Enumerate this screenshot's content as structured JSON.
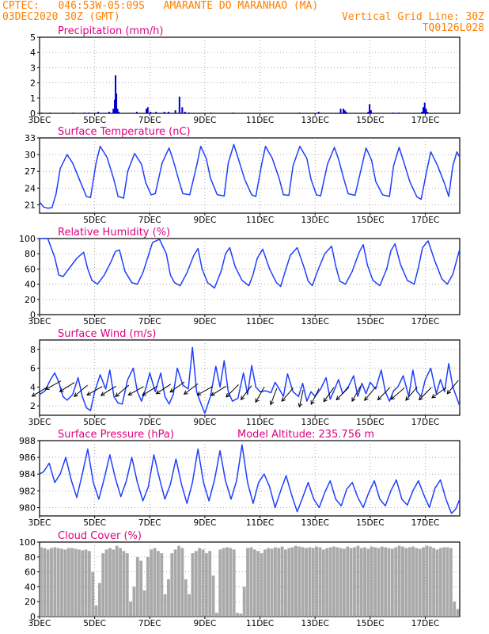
{
  "header": {
    "line1": "CPTEC:   046:53W-05:09S   AMARANTE DO MARANHAO (MA)",
    "line2": "03DEC2020 30Z (GMT)",
    "grid_note": "Vertical Grid Line: 30Z",
    "code": "TQ0126L028"
  },
  "colors": {
    "header": "#ff7f00",
    "title": "#e0007f",
    "line": "#1f3fff",
    "bar": "#0000cc",
    "cloud": "#a9a9a9",
    "arrow": "#000000"
  },
  "chart_data": [
    {
      "type": "bar",
      "title": "Precipitation (mm/h)",
      "ylim": [
        0,
        5
      ],
      "yticks": [
        0,
        1,
        2,
        3,
        4,
        5
      ],
      "xticks": [
        "3DEC",
        "5DEC",
        "7DEC",
        "9DEC",
        "11DEC",
        "13DEC",
        "15DEC",
        "17DEC"
      ],
      "xtick_days": [
        3,
        5,
        7,
        9,
        11,
        13,
        15,
        17
      ],
      "xlim_days": [
        3,
        18.25
      ],
      "x_days": [
        3.05,
        3.35,
        4.2,
        4.6,
        4.75,
        5.1,
        5.5,
        5.65,
        5.7,
        5.73,
        5.76,
        5.8,
        5.85,
        6.5,
        6.85,
        6.9,
        7.0,
        7.2,
        7.5,
        7.65,
        7.9,
        8.05,
        8.15,
        8.25,
        8.4,
        9.2,
        10.0,
        12.4,
        13.1,
        13.9,
        14.0,
        14.05,
        14.1,
        14.9,
        14.95,
        15.0,
        15.8,
        16.0,
        16.85,
        16.9,
        16.95,
        17.0,
        17.05
      ],
      "values": [
        0.05,
        0.05,
        0.05,
        0.05,
        0.05,
        0.1,
        0.1,
        0.3,
        0.9,
        2.5,
        1.3,
        0.3,
        0.1,
        0.1,
        0.3,
        0.4,
        0.1,
        0.1,
        0.1,
        0.1,
        0.2,
        1.1,
        0.4,
        0.1,
        0.05,
        0.05,
        0.05,
        0.05,
        0.1,
        0.3,
        0.3,
        0.2,
        0.1,
        0.1,
        0.6,
        0.2,
        0.05,
        0.05,
        0.1,
        0.4,
        0.7,
        0.3,
        0.1
      ]
    },
    {
      "type": "line",
      "title": "Surface Temperature (nC)",
      "ylim": [
        19.5,
        33
      ],
      "yticks": [
        21,
        24,
        27,
        30,
        33
      ],
      "xticks": [
        "5DEC",
        "7DEC",
        "9DEC",
        "11DEC",
        "13DEC",
        "15DEC",
        "17DEC"
      ],
      "xtick_days": [
        5,
        7,
        9,
        11,
        13,
        15,
        17
      ],
      "xlim_days": [
        3,
        18.25
      ],
      "x_days": [
        3,
        3.15,
        3.3,
        3.45,
        3.6,
        3.75,
        4.0,
        4.2,
        4.45,
        4.7,
        4.85,
        5.05,
        5.2,
        5.45,
        5.7,
        5.85,
        6.05,
        6.2,
        6.45,
        6.7,
        6.85,
        7.05,
        7.2,
        7.45,
        7.7,
        7.85,
        8.05,
        8.2,
        8.45,
        8.7,
        8.85,
        9.05,
        9.2,
        9.45,
        9.7,
        9.85,
        10.05,
        10.2,
        10.45,
        10.7,
        10.85,
        11.05,
        11.2,
        11.45,
        11.7,
        11.85,
        12.05,
        12.2,
        12.45,
        12.7,
        12.85,
        13.05,
        13.2,
        13.45,
        13.7,
        13.85,
        14.05,
        14.2,
        14.45,
        14.7,
        14.85,
        15.05,
        15.2,
        15.45,
        15.7,
        15.85,
        16.05,
        16.2,
        16.45,
        16.7,
        16.85,
        17.05,
        17.2,
        17.45,
        17.7,
        17.85,
        18.0,
        18.15,
        18.25
      ],
      "values": [
        21.5,
        20.6,
        20.4,
        20.5,
        23.0,
        27.5,
        30.0,
        28.5,
        25.5,
        22.5,
        22.3,
        28.5,
        31.5,
        29.5,
        25.5,
        22.5,
        22.2,
        27.0,
        30.2,
        28.3,
        25.0,
        22.8,
        23.0,
        28.5,
        31.2,
        29.0,
        25.5,
        23.0,
        22.8,
        28.0,
        31.5,
        29.3,
        25.8,
        22.8,
        22.6,
        28.5,
        31.8,
        29.5,
        25.5,
        22.8,
        22.5,
        28.0,
        31.5,
        29.3,
        25.7,
        22.8,
        22.7,
        28.0,
        31.5,
        29.3,
        25.6,
        22.8,
        22.6,
        28.3,
        31.3,
        29.2,
        25.5,
        23.0,
        22.7,
        28.0,
        31.2,
        29.0,
        25.2,
        22.8,
        22.5,
        28.0,
        31.3,
        29.0,
        25.0,
        22.4,
        22.0,
        27.0,
        30.5,
        28.0,
        24.8,
        22.5,
        28.0,
        30.5,
        29.5
      ]
    },
    {
      "type": "line",
      "title": "Relative Humidity (%)",
      "ylim": [
        0,
        100
      ],
      "yticks": [
        0,
        20,
        40,
        60,
        80,
        100
      ],
      "xticks": [
        "3DEC",
        "5DEC",
        "7DEC",
        "9DEC",
        "11DEC",
        "13DEC",
        "15DEC",
        "17DEC"
      ],
      "xtick_days": [
        3,
        5,
        7,
        9,
        11,
        13,
        15,
        17
      ],
      "xlim_days": [
        3,
        18.25
      ],
      "x_days": [
        3,
        3.3,
        3.55,
        3.7,
        3.85,
        4.1,
        4.35,
        4.6,
        4.75,
        4.9,
        5.1,
        5.35,
        5.6,
        5.75,
        5.9,
        6.1,
        6.35,
        6.55,
        6.75,
        6.9,
        7.1,
        7.35,
        7.6,
        7.75,
        7.9,
        8.1,
        8.35,
        8.6,
        8.75,
        8.9,
        9.1,
        9.35,
        9.6,
        9.75,
        9.9,
        10.1,
        10.35,
        10.6,
        10.75,
        10.9,
        11.1,
        11.35,
        11.6,
        11.75,
        11.9,
        12.1,
        12.35,
        12.6,
        12.75,
        12.9,
        13.1,
        13.35,
        13.6,
        13.75,
        13.9,
        14.1,
        14.35,
        14.6,
        14.75,
        14.9,
        15.1,
        15.35,
        15.6,
        15.75,
        15.9,
        16.1,
        16.35,
        16.6,
        16.75,
        16.9,
        17.1,
        17.35,
        17.6,
        17.8,
        18.0,
        18.25
      ],
      "values": [
        100,
        100,
        75,
        52,
        50,
        62,
        74,
        82,
        60,
        45,
        40,
        52,
        70,
        83,
        85,
        57,
        42,
        40,
        55,
        72,
        95,
        99,
        80,
        52,
        42,
        38,
        55,
        78,
        87,
        60,
        42,
        35,
        58,
        80,
        88,
        63,
        45,
        38,
        53,
        74,
        86,
        60,
        42,
        37,
        55,
        78,
        88,
        62,
        44,
        38,
        58,
        80,
        90,
        64,
        44,
        40,
        57,
        82,
        92,
        65,
        45,
        38,
        60,
        84,
        93,
        66,
        45,
        40,
        62,
        88,
        97,
        70,
        47,
        40,
        53,
        86
      ]
    },
    {
      "type": "line",
      "title": "Surface Wind (m/s)",
      "ylim": [
        1,
        9
      ],
      "yticks": [
        2,
        4,
        6,
        8
      ],
      "xticks": [
        "3DEC",
        "5DEC",
        "7DEC",
        "9DEC",
        "11DEC",
        "13DEC",
        "15DEC",
        "17DEC"
      ],
      "xtick_days": [
        3,
        5,
        7,
        9,
        11,
        13,
        15,
        17
      ],
      "xlim_days": [
        3,
        18.25
      ],
      "x_days": [
        3,
        3.2,
        3.4,
        3.55,
        3.7,
        3.85,
        4.0,
        4.2,
        4.4,
        4.55,
        4.7,
        4.85,
        5.0,
        5.2,
        5.4,
        5.55,
        5.7,
        5.85,
        6.0,
        6.2,
        6.4,
        6.55,
        6.7,
        6.85,
        7.0,
        7.2,
        7.4,
        7.55,
        7.7,
        7.85,
        8.0,
        8.2,
        8.4,
        8.55,
        8.7,
        8.85,
        9.0,
        9.2,
        9.4,
        9.55,
        9.7,
        9.85,
        10.0,
        10.2,
        10.4,
        10.55,
        10.7,
        10.85,
        11.0,
        11.2,
        11.4,
        11.55,
        11.7,
        11.85,
        12.0,
        12.2,
        12.4,
        12.55,
        12.7,
        12.85,
        13.0,
        13.2,
        13.4,
        13.55,
        13.7,
        13.85,
        14.0,
        14.2,
        14.4,
        14.55,
        14.7,
        14.85,
        15.0,
        15.2,
        15.4,
        15.55,
        15.7,
        15.85,
        16.0,
        16.2,
        16.4,
        16.55,
        16.7,
        16.85,
        17.0,
        17.2,
        17.4,
        17.55,
        17.7,
        17.85,
        18.0,
        18.25
      ],
      "values": [
        3.2,
        3.6,
        4.8,
        5.5,
        4.5,
        3.0,
        2.6,
        3.2,
        5.0,
        3.0,
        1.8,
        1.5,
        3.5,
        5.3,
        3.8,
        5.8,
        3.0,
        2.3,
        2.2,
        4.8,
        6.0,
        3.5,
        2.5,
        3.8,
        5.5,
        3.5,
        5.5,
        3.0,
        2.2,
        3.2,
        6.0,
        4.2,
        3.8,
        8.2,
        3.5,
        2.3,
        1.2,
        3.0,
        6.2,
        4.0,
        6.8,
        3.5,
        2.5,
        2.8,
        5.5,
        3.2,
        6.3,
        4.0,
        3.5,
        3.6,
        3.4,
        4.5,
        3.8,
        3.0,
        5.4,
        3.5,
        3.0,
        4.4,
        2.5,
        3.5,
        3.0,
        3.8,
        5.0,
        2.7,
        3.7,
        4.8,
        3.3,
        4.0,
        5.2,
        3.0,
        4.4,
        3.3,
        4.5,
        3.8,
        5.8,
        3.5,
        2.5,
        3.6,
        4.0,
        5.2,
        3.0,
        5.8,
        3.5,
        3.0,
        4.8,
        6.0,
        3.3,
        4.8,
        3.5,
        6.5,
        4.0,
        2.0
      ]
    },
    {
      "type": "line",
      "title": "Surface Pressure (hPa)",
      "annotation": "Model Altitude: 235.756  m",
      "ylim": [
        979,
        988
      ],
      "yticks": [
        980,
        982,
        984,
        986,
        988
      ],
      "xticks": [
        "3DEC",
        "5DEC",
        "7DEC",
        "9DEC",
        "11DEC",
        "13DEC",
        "15DEC",
        "17DEC"
      ],
      "xtick_days": [
        3,
        5,
        7,
        9,
        11,
        13,
        15,
        17
      ],
      "xlim_days": [
        3,
        18.25
      ],
      "x_days": [
        3,
        3.15,
        3.35,
        3.55,
        3.75,
        3.95,
        4.15,
        4.35,
        4.55,
        4.75,
        4.95,
        5.15,
        5.35,
        5.55,
        5.75,
        5.95,
        6.15,
        6.35,
        6.55,
        6.75,
        6.95,
        7.15,
        7.35,
        7.55,
        7.75,
        7.95,
        8.15,
        8.35,
        8.55,
        8.75,
        8.95,
        9.15,
        9.35,
        9.55,
        9.75,
        9.95,
        10.15,
        10.35,
        10.55,
        10.75,
        10.95,
        11.15,
        11.35,
        11.55,
        11.75,
        11.95,
        12.15,
        12.35,
        12.55,
        12.75,
        12.95,
        13.15,
        13.35,
        13.55,
        13.75,
        13.95,
        14.15,
        14.35,
        14.55,
        14.75,
        14.95,
        15.15,
        15.35,
        15.55,
        15.75,
        15.95,
        16.15,
        16.35,
        16.55,
        16.75,
        16.95,
        17.15,
        17.35,
        17.55,
        17.75,
        17.95,
        18.1,
        18.25
      ],
      "values": [
        984.0,
        984.3,
        985.3,
        983.0,
        984.0,
        986.0,
        983.3,
        981.2,
        984.0,
        987.0,
        983.0,
        981.0,
        983.5,
        986.3,
        983.5,
        981.3,
        983.2,
        986.0,
        983.0,
        980.8,
        982.5,
        986.3,
        983.5,
        981.0,
        982.8,
        985.8,
        982.8,
        980.5,
        983.0,
        987.0,
        983.0,
        980.8,
        983.3,
        986.8,
        983.2,
        981.0,
        983.2,
        987.5,
        983.0,
        980.5,
        983.0,
        984.0,
        982.5,
        980.0,
        982.0,
        983.8,
        981.5,
        979.5,
        981.2,
        983.0,
        981.0,
        980.0,
        981.8,
        983.2,
        981.0,
        980.2,
        982.2,
        983.0,
        981.2,
        980.0,
        981.8,
        983.2,
        981.0,
        980.2,
        982.0,
        983.3,
        981.0,
        980.3,
        982.0,
        983.2,
        981.5,
        980.0,
        982.3,
        983.3,
        981.0,
        979.3,
        979.8,
        981.0
      ]
    },
    {
      "type": "bar",
      "title": "Cloud Cover (%)",
      "ylim": [
        0,
        100
      ],
      "yticks": [
        0,
        20,
        40,
        60,
        80,
        100
      ],
      "xticks": [
        "3DEC",
        "5DEC",
        "7DEC",
        "9DEC",
        "11DEC",
        "13DEC",
        "15DEC",
        "17DEC"
      ],
      "xtick_days": [
        3,
        5,
        7,
        9,
        11,
        13,
        15,
        17
      ],
      "xlim_days": [
        3,
        18.25
      ],
      "x_days": [
        3.0,
        3.125,
        3.25,
        3.375,
        3.5,
        3.625,
        3.75,
        3.875,
        4.0,
        4.125,
        4.25,
        4.375,
        4.5,
        4.625,
        4.75,
        4.875,
        5.0,
        5.125,
        5.25,
        5.375,
        5.5,
        5.625,
        5.75,
        5.875,
        6.0,
        6.125,
        6.25,
        6.375,
        6.5,
        6.625,
        6.75,
        6.875,
        7.0,
        7.125,
        7.25,
        7.375,
        7.5,
        7.625,
        7.75,
        7.875,
        8.0,
        8.125,
        8.25,
        8.375,
        8.5,
        8.625,
        8.75,
        8.875,
        9.0,
        9.125,
        9.25,
        9.375,
        9.5,
        9.625,
        9.75,
        9.875,
        10.0,
        10.125,
        10.25,
        10.375,
        10.5,
        10.625,
        10.75,
        10.875,
        11.0,
        11.125,
        11.25,
        11.375,
        11.5,
        11.625,
        11.75,
        11.875,
        12.0,
        12.125,
        12.25,
        12.375,
        12.5,
        12.625,
        12.75,
        12.875,
        13.0,
        13.125,
        13.25,
        13.375,
        13.5,
        13.625,
        13.75,
        13.875,
        14.0,
        14.125,
        14.25,
        14.375,
        14.5,
        14.625,
        14.75,
        14.875,
        15.0,
        15.125,
        15.25,
        15.375,
        15.5,
        15.625,
        15.75,
        15.875,
        16.0,
        16.125,
        16.25,
        16.375,
        16.5,
        16.625,
        16.75,
        16.875,
        17.0,
        17.125,
        17.25,
        17.375,
        17.5,
        17.625,
        17.75,
        17.875,
        18.0,
        18.125
      ],
      "values": [
        93,
        92,
        90,
        92,
        93,
        92,
        91,
        90,
        92,
        92,
        91,
        90,
        89,
        90,
        88,
        60,
        15,
        45,
        85,
        90,
        92,
        90,
        95,
        92,
        88,
        85,
        20,
        40,
        80,
        75,
        35,
        80,
        90,
        92,
        88,
        85,
        30,
        50,
        85,
        90,
        95,
        92,
        50,
        30,
        85,
        88,
        92,
        90,
        85,
        88,
        55,
        5,
        90,
        92,
        93,
        92,
        90,
        5,
        4,
        40,
        92,
        93,
        90,
        88,
        85,
        90,
        92,
        91,
        93,
        92,
        94,
        90,
        92,
        93,
        95,
        94,
        93,
        92,
        93,
        92,
        94,
        93,
        90,
        92,
        93,
        94,
        93,
        92,
        91,
        94,
        92,
        93,
        95,
        92,
        93,
        91,
        94,
        93,
        92,
        94,
        93,
        92,
        91,
        93,
        95,
        94,
        92,
        93,
        94,
        92,
        91,
        93,
        95,
        94,
        92,
        90,
        92,
        93,
        93,
        92,
        20,
        10
      ]
    },
    {
      "type": "scatter",
      "title": "Surface Wind direction arrows",
      "x_days": [
        3.0,
        3.5,
        4.0,
        4.5,
        5.0,
        5.5,
        6.0,
        6.5,
        7.0,
        7.5,
        8.0,
        8.5,
        9.0,
        9.5,
        10.0,
        10.5,
        11.0,
        11.5,
        12.0,
        12.5,
        13.0,
        13.5,
        14.0,
        14.5,
        15.0,
        15.5,
        16.0,
        16.5,
        17.0,
        17.5,
        18.0
      ],
      "u": [
        1.0,
        0.9,
        0.8,
        0.7,
        0.9,
        0.8,
        0.7,
        0.9,
        0.8,
        0.9,
        0.7,
        0.8,
        0.9,
        0.8,
        0.7,
        0.6,
        0.4,
        0.3,
        0.6,
        0.2,
        0.4,
        0.5,
        0.6,
        0.4,
        0.5,
        0.6,
        0.7,
        0.6,
        0.6,
        0.7,
        0.5
      ],
      "v": [
        0.6,
        0.5,
        0.5,
        0.6,
        0.5,
        0.5,
        0.6,
        0.5,
        0.5,
        0.6,
        0.5,
        0.6,
        0.5,
        0.5,
        0.7,
        0.8,
        0.7,
        0.8,
        0.7,
        0.9,
        0.8,
        0.7,
        0.6,
        0.7,
        0.6,
        0.6,
        0.6,
        0.7,
        0.6,
        0.5,
        0.6
      ],
      "y_values": [
        3.5,
        4.2,
        4.0,
        3.6,
        3.6,
        3.6,
        3.6,
        3.6,
        3.6,
        3.8,
        4.0,
        3.8,
        3.6,
        3.6,
        3.6,
        3.4,
        3.2,
        3.0,
        3.2,
        2.8,
        3.0,
        3.2,
        3.3,
        3.3,
        3.3,
        3.3,
        3.3,
        3.3,
        3.3,
        3.4,
        4.0
      ]
    }
  ]
}
